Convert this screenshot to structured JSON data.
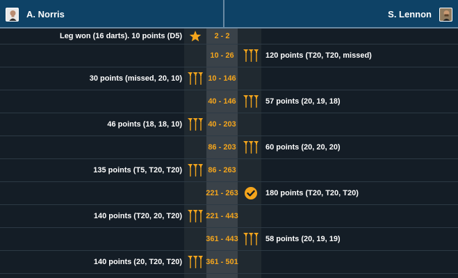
{
  "header": {
    "left_player": {
      "name": "A. Norris",
      "avatar": "player-photo"
    },
    "right_player": {
      "name": "S. Lennon",
      "avatar": "player-photo"
    }
  },
  "colors": {
    "header_bg": "#0e4266",
    "score": "#f4a51c",
    "icon": "#f4a51c",
    "row_bg": "#141d26"
  },
  "throws": [
    {
      "side": "left",
      "text": "Leg won (16 darts). 10 points (D5)",
      "score": "2 - 2",
      "icon": "star-icon"
    },
    {
      "side": "right",
      "text": "120 points (T20, T20, missed)",
      "score": "10 - 26",
      "icon": "darts-icon"
    },
    {
      "side": "left",
      "text": "30 points (missed, 20, 10)",
      "score": "10 - 146",
      "icon": "darts-icon"
    },
    {
      "side": "right",
      "text": "57 points (20, 19, 18)",
      "score": "40 - 146",
      "icon": "darts-icon"
    },
    {
      "side": "left",
      "text": "46 points (18, 18, 10)",
      "score": "40 - 203",
      "icon": "darts-icon"
    },
    {
      "side": "right",
      "text": "60 points (20, 20, 20)",
      "score": "86 - 203",
      "icon": "darts-icon"
    },
    {
      "side": "left",
      "text": "135 points (T5, T20, T20)",
      "score": "86 - 263",
      "icon": "darts-icon"
    },
    {
      "side": "right",
      "text": "180 points (T20, T20, T20)",
      "score": "221 - 263",
      "icon": "checkmark-circle-icon"
    },
    {
      "side": "left",
      "text": "140 points (T20, 20, T20)",
      "score": "221 - 443",
      "icon": "darts-icon"
    },
    {
      "side": "right",
      "text": "58 points (20, 19, 19)",
      "score": "361 - 443",
      "icon": "darts-icon"
    },
    {
      "side": "left",
      "text": "140 points (20, T20, T20)",
      "score": "361 - 501",
      "icon": "darts-icon"
    }
  ]
}
